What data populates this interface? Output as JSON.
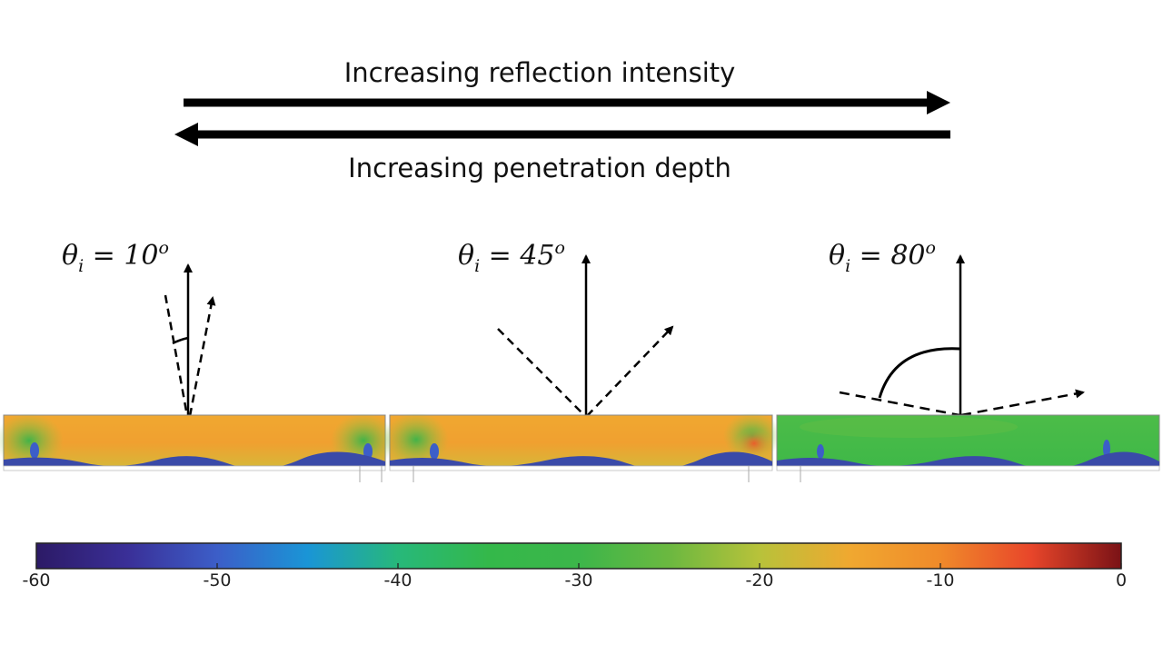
{
  "arrows": {
    "top_caption": "Increasing reflection intensity",
    "bottom_caption": "Increasing penetration depth"
  },
  "panels": [
    {
      "label_symbol": "θ",
      "label_sub": "i",
      "label_eq": " = 10",
      "label_sup": "o",
      "angle_deg": 10,
      "field_tone": "orange"
    },
    {
      "label_symbol": "θ",
      "label_sub": "i",
      "label_eq": " = 45",
      "label_sup": "o",
      "angle_deg": 45,
      "field_tone": "orange"
    },
    {
      "label_symbol": "θ",
      "label_sub": "i",
      "label_eq": " = 80",
      "label_sup": "o",
      "angle_deg": 80,
      "field_tone": "green"
    }
  ],
  "colorbar": {
    "min": -60,
    "max": 0,
    "ticks": [
      "-60",
      "-50",
      "-40",
      "-30",
      "-20",
      "-10",
      "0"
    ],
    "colors": [
      "#2c1a66",
      "#3a2f97",
      "#3c5ec8",
      "#1a95d6",
      "#27b87a",
      "#34b84a",
      "#3cb64a",
      "#6bb840",
      "#b8c23a",
      "#f0a830",
      "#f08a2a",
      "#e8462a",
      "#7a1216"
    ]
  }
}
